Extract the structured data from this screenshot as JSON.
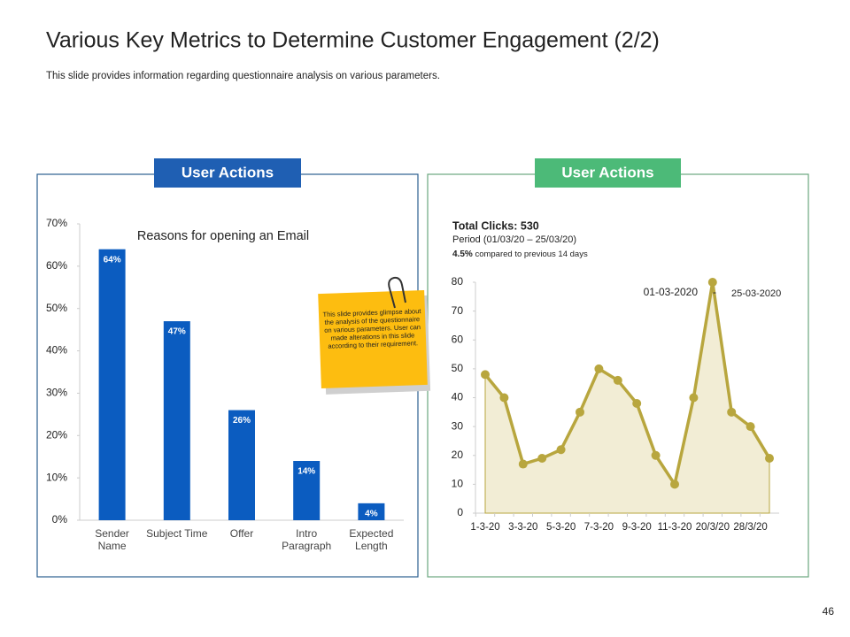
{
  "slide": {
    "title": "Various Key Metrics to Determine Customer Engagement (2/2)",
    "subtitle": "This slide provides information regarding questionnaire analysis on various parameters.",
    "page_number": 46,
    "note": "This slide provides glimpse about the analysis of the questionnaire on various parameters. User can made alterations in this slide according to their requirement."
  },
  "chart_data": [
    {
      "type": "bar",
      "header": "User Actions",
      "header_color": "#1f5fb3",
      "title": "Reasons for opening an Email",
      "categories": [
        "Sender Name",
        "Subject Time",
        "Offer",
        "Intro Paragraph",
        "Expected Length"
      ],
      "values": [
        64,
        47,
        26,
        14,
        4
      ],
      "value_labels": [
        "64%",
        "47%",
        "26%",
        "14%",
        "4%"
      ],
      "color": "#0b5cc0",
      "ylim": [
        0,
        70
      ],
      "yticks": [
        {
          "value": 0,
          "label": "0%"
        },
        {
          "value": 10,
          "label": "10%"
        },
        {
          "value": 20,
          "label": "20%"
        },
        {
          "value": 30,
          "label": "30%"
        },
        {
          "value": 40,
          "label": "40%"
        },
        {
          "value": 50,
          "label": "50%"
        },
        {
          "value": 60,
          "label": "60%"
        },
        {
          "value": 70,
          "label": "70%"
        }
      ]
    },
    {
      "type": "area",
      "header": "User Actions",
      "header_color": "#4cba78",
      "title": "Total Clicks: 530",
      "subtitle": "Period (01/03/20 – 25/03/20)",
      "change": "4.5%",
      "change_text": "compared to previous 14 days",
      "date_range_start": "01-03-2020",
      "date_range_separator": "-",
      "date_range_end": "25-03-2020",
      "categories": [
        "1-3-20",
        null,
        "3-3-20",
        null,
        "5-3-20",
        null,
        "7-3-20",
        null,
        "9-3-20",
        null,
        "11-3-20",
        null,
        "20/3/20",
        null,
        "28/3/20",
        null
      ],
      "values": [
        48,
        40,
        17,
        19,
        22,
        35,
        50,
        46,
        38,
        20,
        10,
        40,
        80,
        35,
        30,
        19
      ],
      "color": "#b8a63e",
      "fill": "#f2edd5",
      "ylim": [
        0,
        80
      ],
      "yticks": [
        0,
        10,
        20,
        30,
        40,
        50,
        60,
        70,
        80
      ]
    }
  ]
}
